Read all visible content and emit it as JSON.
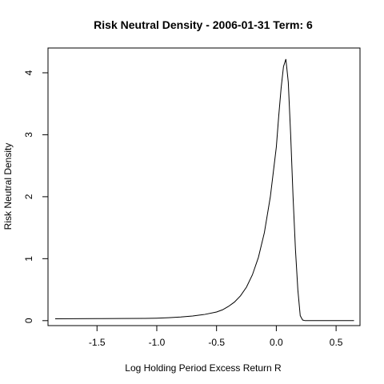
{
  "chart_data": {
    "type": "line",
    "title": "Risk Neutral Density - 2006-01-31 Term: 6",
    "xlabel": "Log Holding Period Excess Return R",
    "ylabel": "Risk Neutral Density",
    "xlim": [
      -1.91,
      0.7
    ],
    "ylim": [
      -0.08,
      4.4
    ],
    "xticks": [
      -1.5,
      -1.0,
      -0.5,
      0.0,
      0.5
    ],
    "xtick_labels": [
      "-1.5",
      "-1.0",
      "-0.5",
      "0.0",
      "0.5"
    ],
    "yticks": [
      0,
      1,
      2,
      3,
      4
    ],
    "ytick_labels": [
      "0",
      "1",
      "2",
      "3",
      "4"
    ],
    "grid": false,
    "line_color": "#000000",
    "series": [
      {
        "x": [
          -1.85,
          -1.7,
          -1.5,
          -1.3,
          -1.1,
          -1.0,
          -0.9,
          -0.8,
          -0.7,
          -0.6,
          -0.5,
          -0.45,
          -0.4,
          -0.35,
          -0.3,
          -0.25,
          -0.2,
          -0.15,
          -0.1,
          -0.05,
          0.0,
          0.02,
          0.04,
          0.06,
          0.08,
          0.1,
          0.12,
          0.14,
          0.16,
          0.18,
          0.2,
          0.22,
          0.24,
          0.3,
          0.4,
          0.5,
          0.6,
          0.65
        ],
        "y": [
          0.03,
          0.032,
          0.033,
          0.034,
          0.036,
          0.04,
          0.047,
          0.058,
          0.075,
          0.1,
          0.14,
          0.175,
          0.23,
          0.3,
          0.4,
          0.54,
          0.74,
          1.02,
          1.42,
          2.0,
          2.8,
          3.3,
          3.75,
          4.1,
          4.22,
          3.85,
          3.0,
          2.0,
          1.15,
          0.5,
          0.08,
          0.01,
          0.0,
          0.0,
          0.0,
          0.0,
          0.0,
          0.0
        ]
      }
    ]
  }
}
